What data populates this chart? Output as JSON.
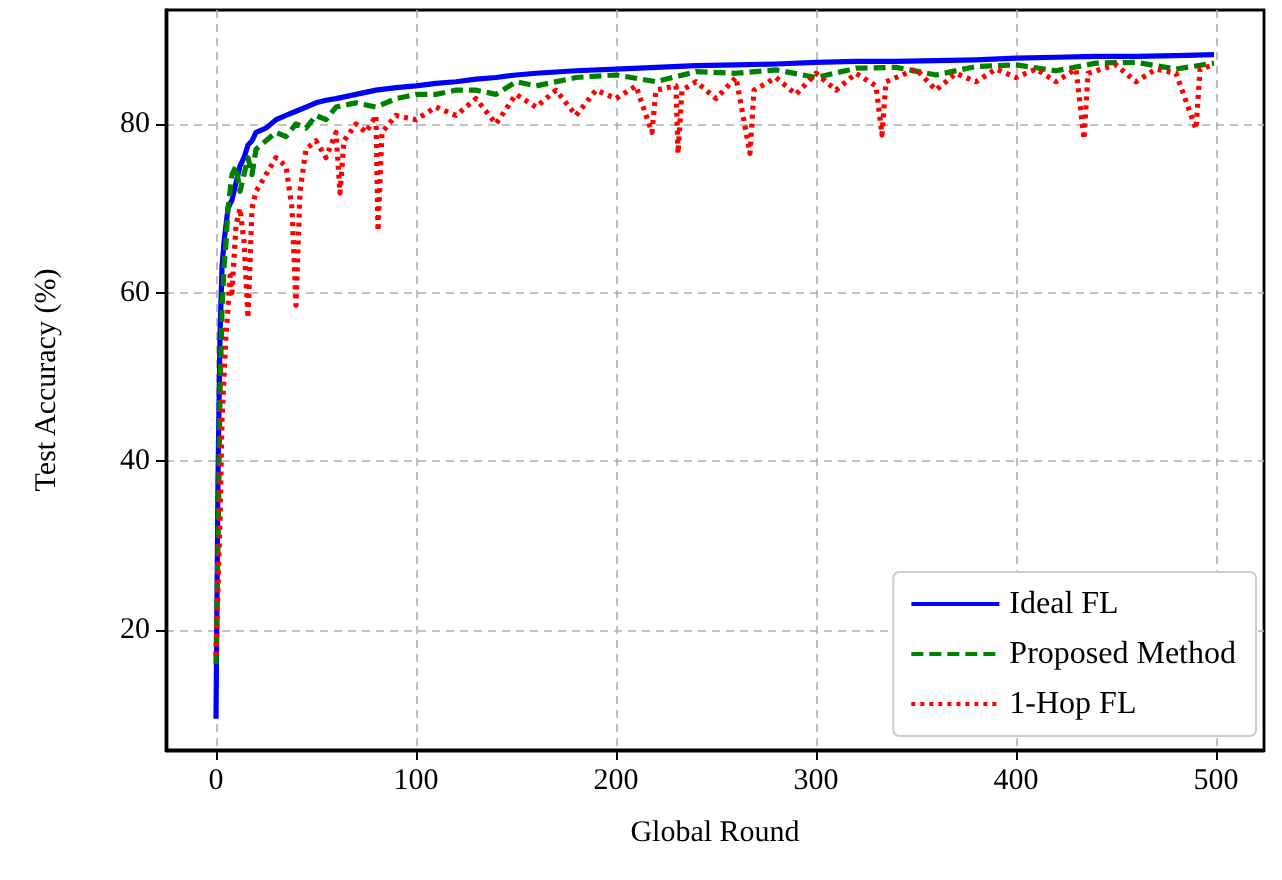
{
  "chart_data": {
    "type": "line",
    "xlabel": "Global Round",
    "ylabel": "Test Accuracy (%)",
    "xlim": [
      -25,
      524
    ],
    "ylim": [
      5.8,
      93.5
    ],
    "xticks": [
      0,
      100,
      200,
      300,
      400,
      500
    ],
    "yticks": [
      20,
      40,
      60,
      80
    ],
    "grid": true,
    "legend": "bottom right",
    "marker": "none",
    "series": [
      {
        "name": "Ideal FL",
        "color": "#0000ff",
        "line_style": "solid",
        "x": [
          0,
          1,
          2,
          3,
          4,
          5,
          6,
          8,
          10,
          12,
          14,
          16,
          18,
          20,
          25,
          30,
          35,
          40,
          45,
          50,
          55,
          60,
          70,
          80,
          90,
          100,
          110,
          120,
          130,
          140,
          150,
          160,
          180,
          200,
          220,
          240,
          260,
          280,
          300,
          320,
          340,
          360,
          380,
          400,
          420,
          440,
          460,
          480,
          499
        ],
        "values": [
          9.5,
          38,
          55,
          63,
          66,
          68,
          70,
          71,
          73,
          75,
          76,
          77.5,
          78,
          79,
          79.5,
          80.5,
          81,
          81.5,
          82,
          82.5,
          82.8,
          83,
          83.5,
          84,
          84.3,
          84.5,
          84.8,
          85,
          85.3,
          85.5,
          85.8,
          86,
          86.3,
          86.5,
          86.7,
          86.9,
          87,
          87.1,
          87.3,
          87.4,
          87.4,
          87.5,
          87.6,
          87.8,
          87.9,
          88,
          88,
          88.1,
          88.2
        ]
      },
      {
        "name": "Proposed Method",
        "color": "#008000",
        "line_style": "dashed",
        "x": [
          0,
          1,
          2,
          3,
          4,
          5,
          6,
          8,
          10,
          12,
          14,
          16,
          18,
          20,
          25,
          30,
          35,
          40,
          45,
          50,
          55,
          60,
          70,
          80,
          90,
          100,
          110,
          120,
          130,
          140,
          150,
          160,
          180,
          200,
          220,
          240,
          260,
          280,
          300,
          320,
          340,
          360,
          380,
          400,
          420,
          440,
          460,
          480,
          499
        ],
        "values": [
          16,
          30,
          48,
          58,
          63,
          66,
          70,
          74,
          75,
          72,
          74,
          76,
          74,
          77,
          78,
          79,
          78.5,
          80,
          79.5,
          81,
          80.5,
          82,
          82.5,
          82,
          83,
          83.5,
          83.5,
          84,
          84,
          83.5,
          85,
          84.5,
          85.5,
          85.8,
          85,
          86.2,
          86,
          86.4,
          85.5,
          86.6,
          86.7,
          85.8,
          86.8,
          87,
          86.3,
          87.2,
          87.3,
          86.5,
          87.2
        ]
      },
      {
        "name": "1-Hop FL",
        "color": "#ff0000",
        "line_style": "dotted",
        "x": [
          0,
          1,
          2,
          3,
          4,
          5,
          6,
          7,
          8,
          10,
          12,
          14,
          16,
          18,
          20,
          25,
          30,
          35,
          38,
          40,
          42,
          45,
          50,
          55,
          60,
          62,
          64,
          70,
          75,
          80,
          81,
          83,
          90,
          100,
          110,
          120,
          130,
          140,
          150,
          160,
          170,
          180,
          190,
          200,
          210,
          218,
          220,
          230,
          231,
          233,
          240,
          250,
          260,
          267,
          269,
          280,
          290,
          300,
          310,
          320,
          330,
          333,
          335,
          350,
          360,
          370,
          380,
          390,
          400,
          410,
          420,
          430,
          434,
          436,
          450,
          460,
          470,
          480,
          490,
          492,
          499
        ],
        "values": [
          17,
          25,
          33,
          45,
          50,
          55,
          58,
          62,
          60,
          68,
          70,
          66,
          57,
          70,
          72,
          74,
          76,
          75,
          70,
          58.5,
          72,
          77,
          78,
          76,
          79,
          71.8,
          78,
          80,
          79,
          81,
          67.3,
          79,
          81,
          80.5,
          82,
          81,
          83,
          80,
          83.5,
          82,
          84,
          81,
          84,
          83,
          84.5,
          79,
          84,
          84.5,
          76.5,
          84,
          85,
          83,
          85.5,
          76.5,
          84,
          85.5,
          83.5,
          86,
          84,
          86,
          84.5,
          78.7,
          85,
          86.5,
          84,
          86,
          85,
          86.5,
          85.5,
          86.5,
          85,
          86.5,
          78.2,
          86,
          87,
          85,
          86.5,
          86,
          79.4,
          86.5,
          87
        ]
      }
    ]
  }
}
